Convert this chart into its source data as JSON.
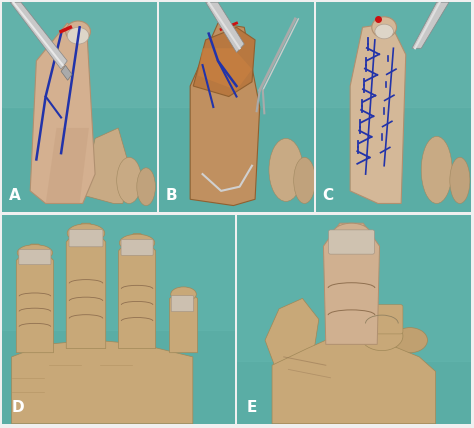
{
  "bg_color": "#f0f0f0",
  "teal": "#5ba8a0",
  "teal_dark": "#4a9890",
  "skin_light": "#d4b090",
  "skin_mid": "#c4a07a",
  "skin_dark": "#b08860",
  "skin_palm": "#c8a878",
  "nail_color": "#d8ccc0",
  "nail_edge": "#b0a090",
  "blue_mark": "#2233aa",
  "red_mark": "#cc1111",
  "tool_color": "#b0b0b0",
  "tool_dark": "#888888",
  "tissue": "#b87840",
  "border": "#dddddd",
  "label_color": "#ffffff",
  "label_fontsize": 11,
  "panel_border": "#cccccc",
  "panels": {
    "A": [
      0.005,
      0.505,
      0.326,
      0.49
    ],
    "B": [
      0.336,
      0.505,
      0.326,
      0.49
    ],
    "C": [
      0.667,
      0.505,
      0.326,
      0.49
    ],
    "D": [
      0.005,
      0.01,
      0.49,
      0.488
    ],
    "E": [
      0.5,
      0.01,
      0.493,
      0.488
    ]
  }
}
